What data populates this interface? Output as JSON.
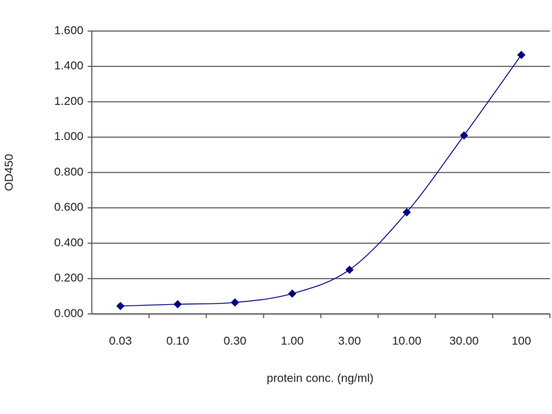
{
  "chart_data": {
    "type": "line",
    "markers": true,
    "color": "#000080",
    "y_label": "OD450",
    "x_label": "protein conc. (ng/ml)",
    "categories": [
      "0.03",
      "0.10",
      "0.30",
      "1.00",
      "3.00",
      "10.00",
      "30.00",
      "100"
    ],
    "values": [
      0.045,
      0.055,
      0.065,
      0.115,
      0.25,
      0.575,
      1.01,
      1.465
    ],
    "ylim": [
      0,
      1.6
    ],
    "yticks": [
      {
        "value": 0,
        "label": "0.000"
      },
      {
        "value": 0.2,
        "label": "0.200"
      },
      {
        "value": 0.4,
        "label": "0.400"
      },
      {
        "value": 0.6,
        "label": "0.600"
      },
      {
        "value": 0.8,
        "label": "0.800"
      },
      {
        "value": 1.0,
        "label": "1.000"
      },
      {
        "value": 1.2,
        "label": "1.200"
      },
      {
        "value": 1.4,
        "label": "1.400"
      },
      {
        "value": 1.6,
        "label": "1.600"
      }
    ],
    "grid": true
  }
}
